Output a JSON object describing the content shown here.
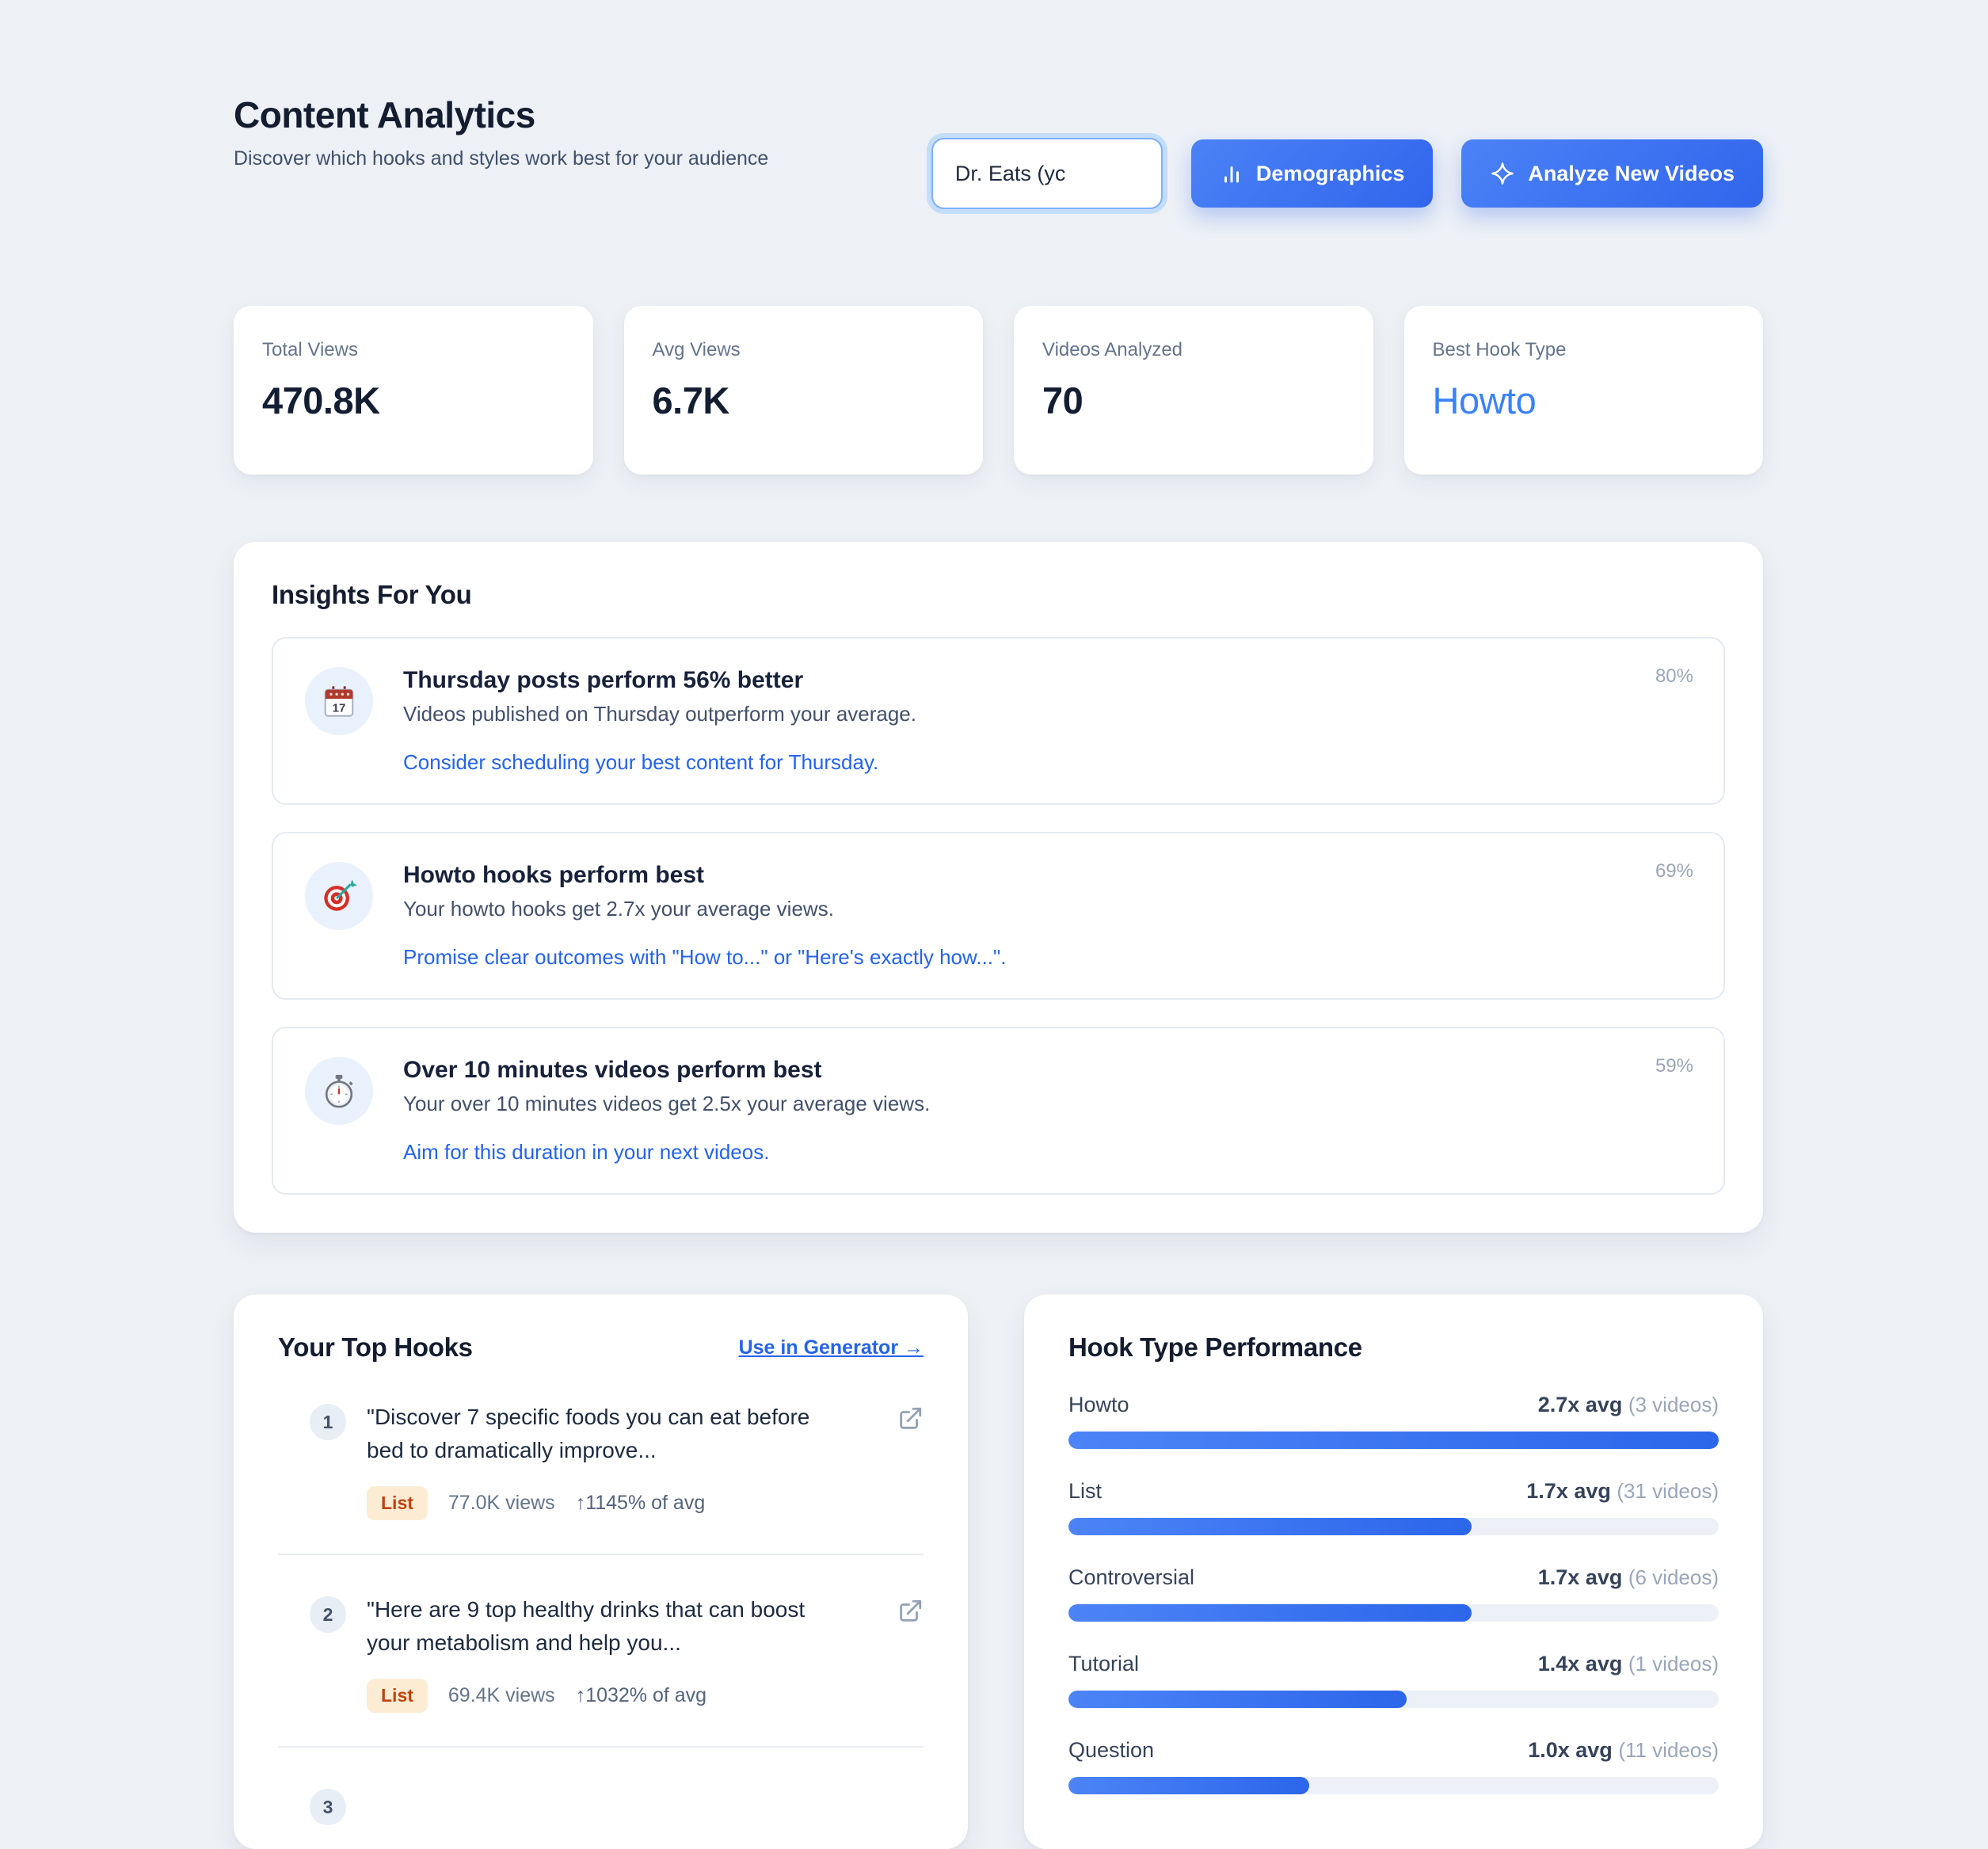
{
  "header": {
    "title": "Content Analytics",
    "subtitle": "Discover which hooks and styles work best for your audience",
    "channel_select_value": "Dr. Eats (yc",
    "demographics_label": "Demographics",
    "analyze_label": "Analyze New Videos"
  },
  "stats": [
    {
      "label": "Total Views",
      "value": "470.8K"
    },
    {
      "label": "Avg Views",
      "value": "6.7K"
    },
    {
      "label": "Videos Analyzed",
      "value": "70"
    },
    {
      "label": "Best Hook Type",
      "value": "Howto"
    }
  ],
  "insights": {
    "title": "Insights For You",
    "items": [
      {
        "icon": "calendar-icon",
        "title": "Thursday posts perform 56% better",
        "description": "Videos published on Thursday outperform your average.",
        "action": "Consider scheduling your best content for Thursday.",
        "confidence": "80%"
      },
      {
        "icon": "target-icon",
        "title": "Howto hooks perform best",
        "description": "Your howto hooks get 2.7x your average views.",
        "action": "Promise clear outcomes with \"How to...\" or \"Here's exactly how...\".",
        "confidence": "69%"
      },
      {
        "icon": "stopwatch-icon",
        "title": "Over 10 minutes videos perform best",
        "description": "Your over 10 minutes videos get 2.5x your average views.",
        "action": "Aim for this duration in your next videos.",
        "confidence": "59%"
      }
    ]
  },
  "top_hooks": {
    "title": "Your Top Hooks",
    "link": "Use in Generator →",
    "items": [
      {
        "rank": "1",
        "text": "\"Discover 7 specific foods you can eat before bed to dramatically improve...",
        "badge": "List",
        "views": "77.0K views",
        "avg": "↑1145% of avg"
      },
      {
        "rank": "2",
        "text": "\"Here are 9 top healthy drinks that can boost your metabolism and help you...",
        "badge": "List",
        "views": "69.4K views",
        "avg": "↑1032% of avg"
      },
      {
        "rank": "3"
      }
    ]
  },
  "hook_performance": {
    "title": "Hook Type Performance",
    "rows": [
      {
        "label": "Howto",
        "value": "2.7x avg",
        "videos": "(3 videos)",
        "pct": 100
      },
      {
        "label": "List",
        "value": "1.7x avg",
        "videos": "(31 videos)",
        "pct": 62
      },
      {
        "label": "Controversial",
        "value": "1.7x avg",
        "videos": "(6 videos)",
        "pct": 62
      },
      {
        "label": "Tutorial",
        "value": "1.4x avg",
        "videos": "(1 videos)",
        "pct": 52
      },
      {
        "label": "Question",
        "value": "1.0x avg",
        "videos": "(11 videos)",
        "pct": 37
      }
    ]
  },
  "colors": {
    "accent_blue": "#3b82f6",
    "link_blue": "#2563eb",
    "badge_orange_text": "#c2410c",
    "badge_orange_bg": "#fdecd4",
    "page_bg": "#edf1f6"
  }
}
